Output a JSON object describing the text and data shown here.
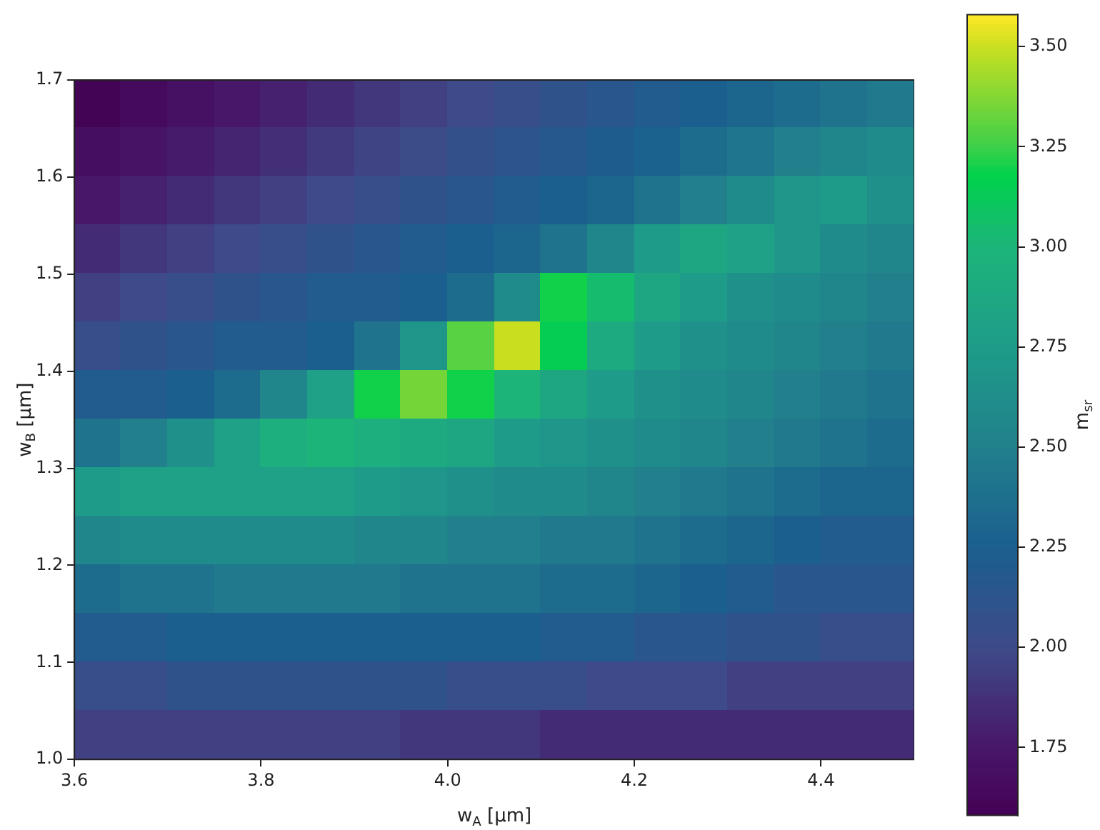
{
  "chart_data": {
    "type": "heatmap",
    "xlabel": "w$_{A}$ [µm]",
    "ylabel": "w$_{B}$ [µm]",
    "clabel": "m$_{sr}$",
    "xlim": [
      3.6,
      4.5
    ],
    "ylim": [
      1.0,
      1.7
    ],
    "xticks": [
      {
        "value": 3.6,
        "label": "3.6"
      },
      {
        "value": 3.8,
        "label": "3.8"
      },
      {
        "value": 4.0,
        "label": "4.0"
      },
      {
        "value": 4.2,
        "label": "4.2"
      },
      {
        "value": 4.4,
        "label": "4.4"
      }
    ],
    "yticks": [
      {
        "value": 1.0,
        "label": "1.0"
      },
      {
        "value": 1.1,
        "label": "1.1"
      },
      {
        "value": 1.2,
        "label": "1.2"
      },
      {
        "value": 1.3,
        "label": "1.3"
      },
      {
        "value": 1.4,
        "label": "1.4"
      },
      {
        "value": 1.5,
        "label": "1.5"
      },
      {
        "value": 1.6,
        "label": "1.6"
      },
      {
        "value": 1.7,
        "label": "1.7"
      }
    ],
    "clim": [
      1.58,
      3.58
    ],
    "cticks": [
      {
        "value": 1.75,
        "label": "1.75"
      },
      {
        "value": 2.0,
        "label": "2.00"
      },
      {
        "value": 2.25,
        "label": "2.25"
      },
      {
        "value": 2.5,
        "label": "2.50"
      },
      {
        "value": 2.75,
        "label": "2.75"
      },
      {
        "value": 3.0,
        "label": "3.00"
      },
      {
        "value": 3.25,
        "label": "3.25"
      },
      {
        "value": 3.5,
        "label": "3.50"
      }
    ],
    "cells": [
      [
        1.6,
        1.65,
        1.7,
        1.75,
        1.8,
        1.85,
        1.9,
        1.95,
        2.0,
        2.05,
        2.1,
        2.15,
        2.2,
        2.25,
        2.3,
        2.35,
        2.4,
        2.45
      ],
      [
        1.68,
        1.72,
        1.77,
        1.82,
        1.87,
        1.92,
        1.97,
        2.02,
        2.07,
        2.12,
        2.17,
        2.22,
        2.27,
        2.35,
        2.42,
        2.5,
        2.55,
        2.6
      ],
      [
        1.75,
        1.8,
        1.85,
        1.9,
        1.95,
        2.0,
        2.05,
        2.1,
        2.15,
        2.2,
        2.25,
        2.3,
        2.4,
        2.5,
        2.6,
        2.7,
        2.75,
        2.65
      ],
      [
        1.85,
        1.9,
        1.95,
        2.0,
        2.05,
        2.1,
        2.15,
        2.2,
        2.25,
        2.3,
        2.4,
        2.55,
        2.75,
        2.85,
        2.8,
        2.7,
        2.6,
        2.55
      ],
      [
        1.95,
        2.0,
        2.05,
        2.1,
        2.15,
        2.2,
        2.2,
        2.25,
        2.35,
        2.6,
        3.2,
        3.05,
        2.85,
        2.75,
        2.65,
        2.6,
        2.55,
        2.5
      ],
      [
        2.05,
        2.1,
        2.15,
        2.2,
        2.2,
        2.25,
        2.4,
        2.7,
        3.3,
        3.5,
        3.15,
        2.9,
        2.75,
        2.65,
        2.6,
        2.55,
        2.5,
        2.45
      ],
      [
        2.2,
        2.2,
        2.25,
        2.35,
        2.55,
        2.8,
        3.2,
        3.35,
        3.2,
        3.0,
        2.85,
        2.75,
        2.65,
        2.6,
        2.55,
        2.5,
        2.45,
        2.4
      ],
      [
        2.4,
        2.5,
        2.65,
        2.8,
        2.95,
        3.0,
        2.95,
        2.9,
        2.85,
        2.75,
        2.7,
        2.65,
        2.6,
        2.55,
        2.5,
        2.45,
        2.4,
        2.35
      ],
      [
        2.75,
        2.8,
        2.8,
        2.8,
        2.8,
        2.8,
        2.75,
        2.7,
        2.65,
        2.6,
        2.6,
        2.55,
        2.5,
        2.45,
        2.4,
        2.35,
        2.3,
        2.3
      ],
      [
        2.55,
        2.6,
        2.6,
        2.6,
        2.6,
        2.6,
        2.55,
        2.55,
        2.5,
        2.5,
        2.45,
        2.45,
        2.4,
        2.35,
        2.3,
        2.25,
        2.2,
        2.2
      ],
      [
        2.35,
        2.4,
        2.4,
        2.45,
        2.45,
        2.45,
        2.45,
        2.4,
        2.4,
        2.4,
        2.35,
        2.35,
        2.3,
        2.25,
        2.2,
        2.15,
        2.15,
        2.15
      ],
      [
        2.2,
        2.2,
        2.25,
        2.25,
        2.25,
        2.25,
        2.25,
        2.25,
        2.25,
        2.25,
        2.2,
        2.2,
        2.15,
        2.15,
        2.1,
        2.1,
        2.05,
        2.05
      ],
      [
        2.05,
        2.05,
        2.1,
        2.1,
        2.1,
        2.1,
        2.1,
        2.1,
        2.05,
        2.05,
        2.05,
        2.0,
        2.0,
        2.0,
        1.95,
        1.95,
        1.95,
        1.95
      ],
      [
        1.95,
        1.95,
        1.95,
        1.95,
        1.95,
        1.95,
        1.95,
        1.9,
        1.9,
        1.9,
        1.85,
        1.85,
        1.85,
        1.85,
        1.85,
        1.85,
        1.85,
        1.85
      ]
    ]
  }
}
